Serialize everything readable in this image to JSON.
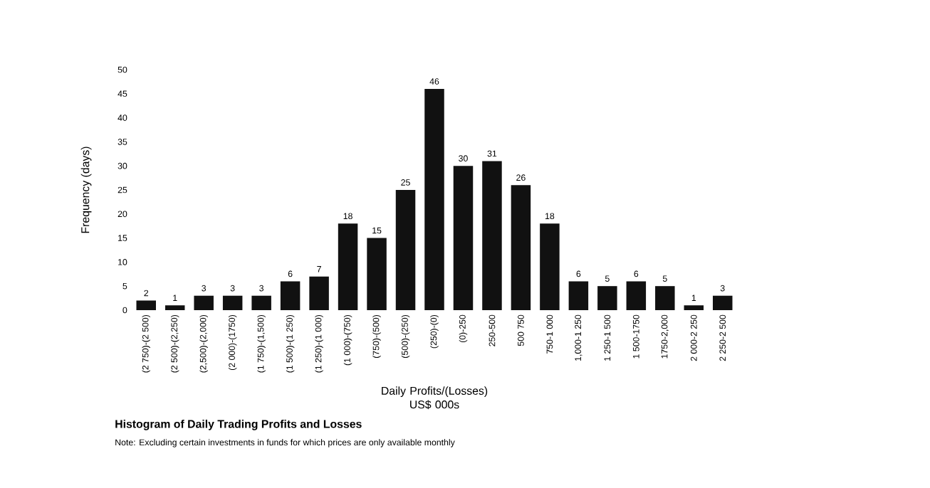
{
  "chart_data": {
    "type": "bar",
    "title": "Histogram of Daily Trading Profits and Losses",
    "xlabel": "Daily Profits/(Losses) US$ 000s",
    "ylabel": "Frequency (days)",
    "annotations": [
      "Note: Excluding certain investments in funds for which prices are only available monthly"
    ],
    "categories": [
      "(2 750)-(2 500)",
      "(2 500)-(2,250)",
      "(2,500)-(2,000)",
      "(2 000)-(1750)",
      "(1 750)-(1,500)",
      "(1 500)-(1 250)",
      "(1 250)-(1 000)",
      "(1 000)-(750)",
      "(750)-(500)",
      "(500)-(250)",
      "(250)-(0)",
      "(0)-250",
      "250-500",
      "500 750",
      "750-1 000",
      "1,000-1 250",
      "1 250-1 500",
      "1 500-1750",
      "1750-2,000",
      "2 000-2 250",
      "2 250-2 500"
    ],
    "values": [
      2,
      1,
      3,
      3,
      3,
      6,
      7,
      18,
      15,
      25,
      46,
      30,
      31,
      26,
      18,
      6,
      5,
      6,
      5,
      1,
      3
    ],
    "color": "#111111",
    "data_labels": true,
    "ylim": [
      0,
      50
    ],
    "yticks": [
      0,
      5,
      10,
      15,
      20,
      25,
      30,
      35,
      40,
      45,
      50
    ]
  }
}
